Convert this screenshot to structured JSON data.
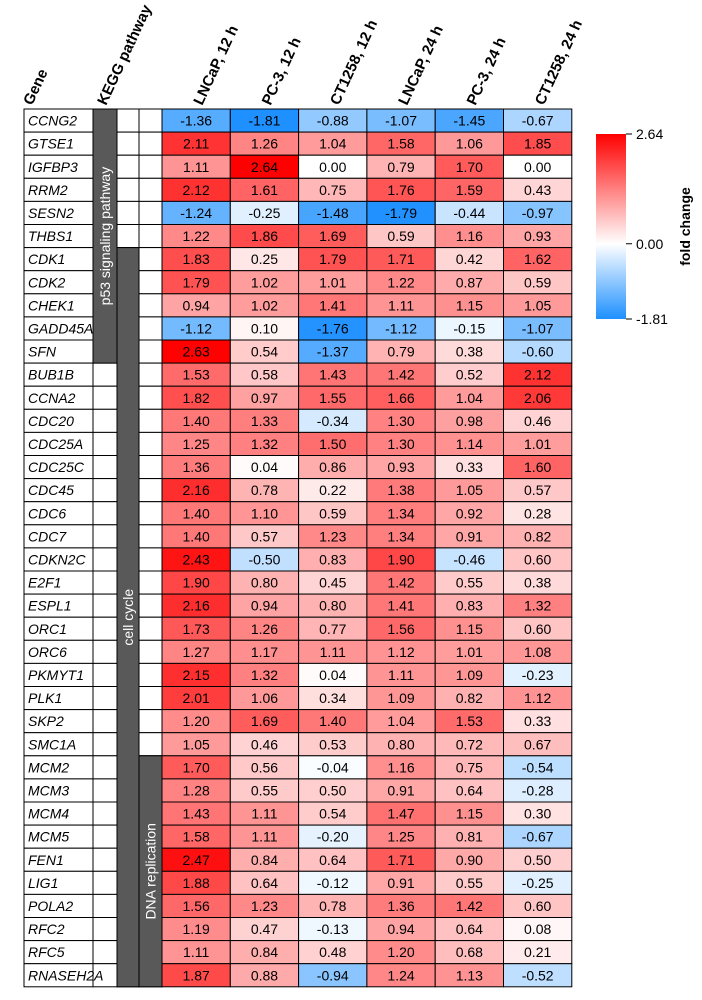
{
  "chart_data": {
    "type": "heatmap",
    "row_header": "Gene",
    "pathway_header": "KEGG pathway",
    "columns": [
      "LNCaP, 12 h",
      "PC-3, 12 h",
      "CT1258, 12 h",
      "LNCaP, 24 h",
      "PC-3, 24 h",
      "CT1258, 24 h"
    ],
    "genes": [
      "CCNG2",
      "GTSE1",
      "IGFBP3",
      "RRM2",
      "SESN2",
      "THBS1",
      "CDK1",
      "CDK2",
      "CHEK1",
      "GADD45A",
      "SFN",
      "BUB1B",
      "CCNA2",
      "CDC20",
      "CDC25A",
      "CDC25C",
      "CDC45",
      "CDC6",
      "CDC7",
      "CDKN2C",
      "E2F1",
      "ESPL1",
      "ORC1",
      "ORC6",
      "PKMYT1",
      "PLK1",
      "SKP2",
      "SMC1A",
      "MCM2",
      "MCM3",
      "MCM4",
      "MCM5",
      "FEN1",
      "LIG1",
      "POLA2",
      "RFC2",
      "RFC5",
      "RNASEH2A"
    ],
    "values": [
      [
        -1.36,
        -1.81,
        -0.88,
        -1.07,
        -1.45,
        -0.67
      ],
      [
        2.11,
        1.26,
        1.04,
        1.58,
        1.06,
        1.85
      ],
      [
        1.11,
        2.64,
        0.0,
        0.79,
        1.7,
        0.0
      ],
      [
        2.12,
        1.61,
        0.75,
        1.76,
        1.59,
        0.43
      ],
      [
        -1.24,
        -0.25,
        -1.48,
        -1.79,
        -0.44,
        -0.97
      ],
      [
        1.22,
        1.86,
        1.69,
        0.59,
        1.16,
        0.93
      ],
      [
        1.83,
        0.25,
        1.79,
        1.71,
        0.42,
        1.62
      ],
      [
        1.79,
        1.02,
        1.01,
        1.22,
        0.87,
        0.59
      ],
      [
        0.94,
        1.02,
        1.41,
        1.11,
        1.15,
        1.05
      ],
      [
        -1.12,
        0.1,
        -1.76,
        -1.12,
        -0.15,
        -1.07
      ],
      [
        2.63,
        0.54,
        -1.37,
        0.79,
        0.38,
        -0.6
      ],
      [
        1.53,
        0.58,
        1.43,
        1.42,
        0.52,
        2.12
      ],
      [
        1.82,
        0.97,
        1.55,
        1.66,
        1.04,
        2.06
      ],
      [
        1.4,
        1.33,
        -0.34,
        1.3,
        0.98,
        0.46
      ],
      [
        1.25,
        1.32,
        1.5,
        1.3,
        1.14,
        1.01
      ],
      [
        1.36,
        0.04,
        0.86,
        0.93,
        0.33,
        1.6
      ],
      [
        2.16,
        0.78,
        0.22,
        1.38,
        1.05,
        0.57
      ],
      [
        1.4,
        1.1,
        0.59,
        1.34,
        0.92,
        0.28
      ],
      [
        1.4,
        0.57,
        1.23,
        1.34,
        0.91,
        0.82
      ],
      [
        2.43,
        -0.5,
        0.83,
        1.9,
        -0.46,
        0.6
      ],
      [
        1.9,
        0.8,
        0.45,
        1.42,
        0.55,
        0.38
      ],
      [
        2.16,
        0.94,
        0.8,
        1.41,
        0.83,
        1.32
      ],
      [
        1.73,
        1.26,
        0.77,
        1.56,
        1.15,
        0.6
      ],
      [
        1.27,
        1.17,
        1.11,
        1.12,
        1.01,
        1.08
      ],
      [
        2.15,
        1.32,
        0.04,
        1.11,
        1.09,
        -0.23
      ],
      [
        2.01,
        1.06,
        0.34,
        1.09,
        0.82,
        1.12
      ],
      [
        1.2,
        1.69,
        1.4,
        1.04,
        1.53,
        0.33
      ],
      [
        1.05,
        0.46,
        0.53,
        0.8,
        0.72,
        0.67
      ],
      [
        1.7,
        0.56,
        -0.04,
        1.16,
        0.75,
        -0.54
      ],
      [
        1.28,
        0.55,
        0.5,
        0.91,
        0.64,
        -0.28
      ],
      [
        1.43,
        1.11,
        0.54,
        1.47,
        1.15,
        0.3
      ],
      [
        1.58,
        1.11,
        -0.2,
        1.25,
        0.81,
        -0.67
      ],
      [
        2.47,
        0.84,
        0.64,
        1.71,
        0.9,
        0.5
      ],
      [
        1.88,
        0.64,
        -0.12,
        0.91,
        0.55,
        -0.25
      ],
      [
        1.56,
        1.23,
        0.78,
        1.36,
        1.42,
        0.6
      ],
      [
        1.19,
        0.47,
        -0.13,
        0.94,
        0.64,
        0.08
      ],
      [
        1.11,
        0.84,
        0.48,
        1.2,
        0.68,
        0.21
      ],
      [
        1.87,
        0.88,
        -0.94,
        1.24,
        1.13,
        -0.52
      ]
    ],
    "pathways": [
      {
        "label": "p53 signaling pathway",
        "rows": [
          0,
          10
        ]
      },
      {
        "label": "cell cycle",
        "rows": [
          6,
          37
        ]
      },
      {
        "label": "DNA replication",
        "rows": [
          28,
          37
        ]
      }
    ],
    "colorscale": {
      "min": -1.81,
      "mid": 0.0,
      "max": 2.64,
      "min_color": "#1e90ff",
      "mid_color": "#ffffff",
      "max_color": "#ff0000",
      "label": "fold change",
      "tick_labels": [
        "2.64",
        "0.00",
        "-1.81"
      ]
    }
  }
}
